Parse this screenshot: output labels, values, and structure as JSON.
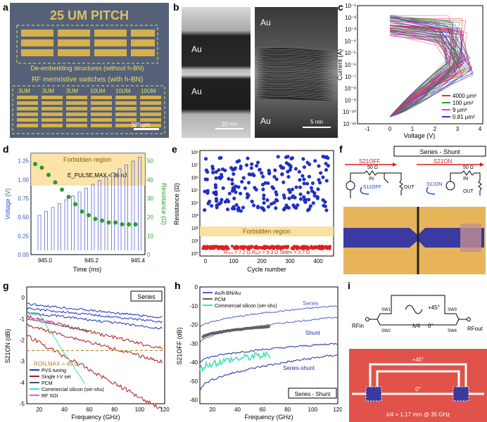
{
  "panel_labels": {
    "a": "a",
    "b": "b",
    "c": "c",
    "d": "d",
    "e": "e",
    "f": "f",
    "g": "g",
    "h": "h",
    "i": "i"
  },
  "panel_a": {
    "title": "25 UM PITCH",
    "deembed_label": "De-embedding structures (without h-BN)",
    "rf_label": "RF memristive switches (with h-BN)",
    "col_labels": [
      "3UM",
      "3UM",
      "3UM",
      "10UM",
      "10UM",
      "10UM"
    ],
    "scale_bar": "500 μm"
  },
  "panel_b": {
    "left_labels": [
      "Au",
      "Au"
    ],
    "left_scale": "20 nm",
    "right_labels": [
      "Au",
      "Au"
    ],
    "right_scale": "5 nm"
  },
  "panel_c": {
    "ylabel": "Current (A)",
    "xlabel": "Voltage (V)",
    "yticks": [
      "10⁻¹",
      "10⁻²",
      "10⁻³",
      "10⁻⁴",
      "10⁻⁵",
      "10⁻⁶",
      "10⁻⁷",
      "10⁻⁸",
      "10⁻⁹",
      "10⁻¹⁰",
      "10⁻¹¹"
    ],
    "xticks": [
      "-1",
      "0",
      "1",
      "2",
      "3",
      "4"
    ],
    "legend": [
      {
        "name": "4000 μm²",
        "color": "#e0303a"
      },
      {
        "name": "100 μm²",
        "color": "#2ca02c"
      },
      {
        "name": "9 μm²",
        "color": "#e040c8"
      },
      {
        "name": "0.81 μm²",
        "color": "#1f3fd0"
      }
    ]
  },
  "panel_d": {
    "forbidden": "Forbidden region",
    "annotation": "E_PULSE,MAX < 36 nJ",
    "ylabel_left": "Voltage (V)",
    "ylabel_right": "Resistance (Ω)",
    "xlabel": "Time (ms)",
    "yticks_left": [
      "0.00",
      "0.25",
      "0.50",
      "0.75",
      "1.00",
      "1.25"
    ],
    "yticks_right": [
      "0",
      "10",
      "20",
      "30",
      "40",
      "50"
    ],
    "xticks": [
      "945.0",
      "945.2",
      "945.4"
    ]
  },
  "panel_e": {
    "ylabel": "Resistance (Ω)",
    "xlabel": "Cycle number",
    "forbidden": "Forbidden region",
    "stats": "Rₘᵢₙ = 7.2 Ω   Rₐᵥᵍ = 9.3 Ω   Stdev = 3.7 Ω",
    "yticks": [
      "10⁸",
      "10⁷",
      "10⁶",
      "10⁵",
      "10⁴",
      "10³",
      "10²",
      "10¹",
      "10⁰"
    ],
    "xticks": [
      "0",
      "100",
      "200",
      "300",
      "400"
    ]
  },
  "panel_f": {
    "title": "Series - Shunt",
    "s21_off": "S21OFF",
    "s21_on": "S21ON",
    "s11_off": "S11OFF",
    "s11_on": "S11ON",
    "ohm": "50 Ω",
    "in": "IN",
    "out": "OUT"
  },
  "panel_g": {
    "tag": "Series",
    "ylabel": "S21ON (dB)",
    "xlabel": "Frequency (GHz)",
    "annotation": "RON,MAX = 40 Ω",
    "yticks": [
      "0",
      "-1",
      "-2",
      "-3",
      "-4",
      "-5"
    ],
    "xticks": [
      "20",
      "40",
      "60",
      "80",
      "100",
      "120"
    ],
    "legend": [
      {
        "name": "PVS tuning",
        "color": "#1f2fc0"
      },
      {
        "name": "Single I-V set",
        "color": "#b01818"
      },
      {
        "name": "PCM",
        "color": "#505050"
      },
      {
        "name": "Commercial silicon (ser-shu)",
        "color": "#40e0b0"
      },
      {
        "name": "RF SOI",
        "color": "#f050f0"
      }
    ]
  },
  "panel_h": {
    "ylabel": "S21OFF (dB)",
    "xlabel": "Frequency (GHz)",
    "tag": "Series - Shunt",
    "series_labels": [
      "Series",
      "Shunt",
      "Series-shunt"
    ],
    "yticks": [
      "0",
      "-10",
      "-20",
      "-30",
      "-40",
      "-50",
      "-60"
    ],
    "xticks": [
      "20",
      "40",
      "60",
      "80",
      "100",
      "120"
    ],
    "legend": [
      {
        "name": "Au/h-BN/Au",
        "color": "#5060d0"
      },
      {
        "name": "PCM",
        "color": "#606060"
      },
      {
        "name": "Commercial silicon (ser-shu)",
        "color": "#40e0b0"
      }
    ]
  },
  "panel_i": {
    "plus45_top": "+45°",
    "zero_top": "0°",
    "lambda": "λ/4",
    "rf_in": "RFin",
    "rf_out": "RFout",
    "sw": [
      "SW1",
      "SW2",
      "SW3",
      "SW4"
    ],
    "plus45_bottom": "+45°",
    "zero_bottom": "0°",
    "caption": "λ/4 = 1.17 mm @ 35 GHz"
  }
}
